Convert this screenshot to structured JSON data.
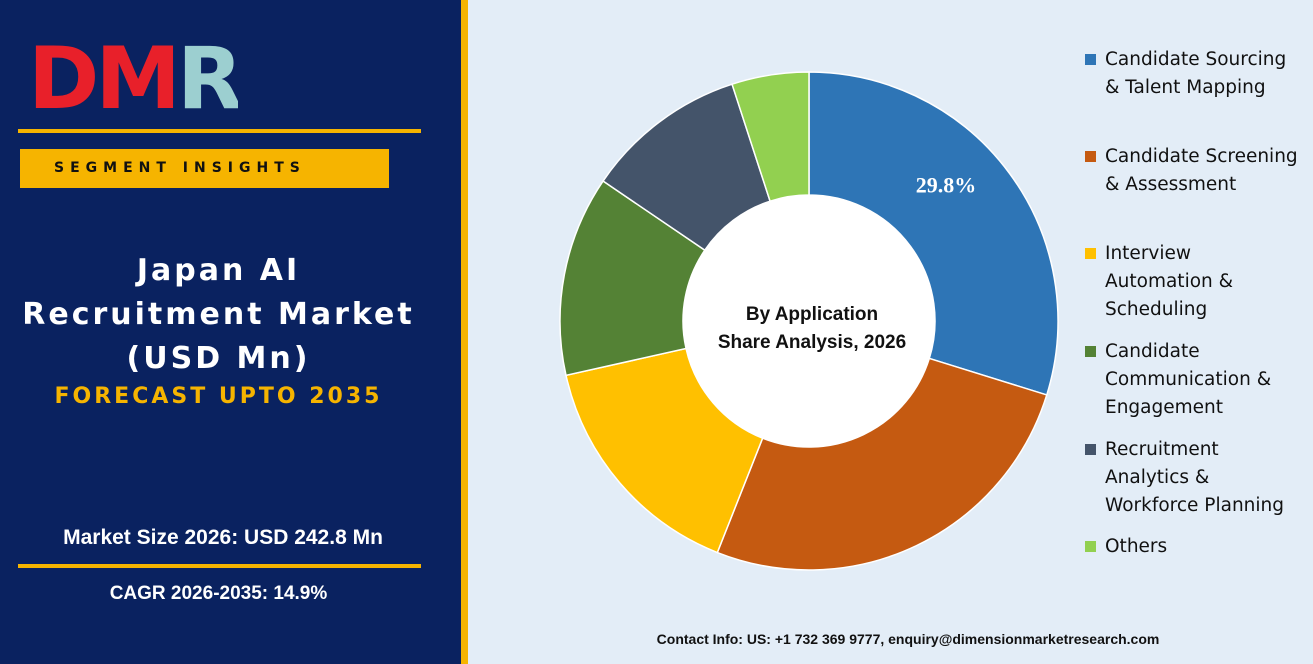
{
  "brand": {
    "logo_text": "DMR",
    "logo_colors": {
      "D": "#e8202a",
      "M": "#e8202a",
      "R": "#9ccfd0"
    }
  },
  "left": {
    "segment_label": "SEGMENT INSIGHTS",
    "title_lines": [
      "Japan AI",
      "Recruitment Market",
      "(USD Mn)"
    ],
    "forecast": "FORECAST UPTO 2035",
    "market_size": "Market Size 2026: USD 242.8 Mn",
    "cagr": "CAGR 2026-2035: 14.9%"
  },
  "colors": {
    "navy": "#0a2260",
    "gold": "#f6b400",
    "right_bg": "#e3edf7"
  },
  "chart_data": {
    "type": "pie",
    "donut": true,
    "center_label": [
      "By Application",
      "Share Analysis, 2026"
    ],
    "slices": [
      {
        "label": "Candidate Sourcing & Talent Mapping",
        "value": 29.8,
        "color": "#2e75b6",
        "data_label": "29.8%"
      },
      {
        "label": "Candidate Screening & Assessment",
        "value": 26.2,
        "color": "#c55a11",
        "data_label": ""
      },
      {
        "label": "Interview Automation & Scheduling",
        "value": 15.5,
        "color": "#ffc000",
        "data_label": ""
      },
      {
        "label": "Candidate Communication & Engagement",
        "value": 13.0,
        "color": "#548235",
        "data_label": ""
      },
      {
        "label": "Recruitment Analytics & Workforce Planning",
        "value": 10.5,
        "color": "#44546a",
        "data_label": ""
      },
      {
        "label": "Others",
        "value": 5.0,
        "color": "#92d050",
        "data_label": ""
      }
    ]
  },
  "legend": [
    {
      "text": "Candidate Sourcing\n& Talent Mapping",
      "color": "#2e75b6"
    },
    {
      "text": "Candidate Screening\n& Assessment",
      "color": "#c55a11"
    },
    {
      "text": "Interview\nAutomation &\nScheduling",
      "color": "#ffc000"
    },
    {
      "text": "Candidate\nCommunication &\nEngagement",
      "color": "#548235"
    },
    {
      "text": "Recruitment\nAnalytics &\nWorkforce Planning",
      "color": "#44546a"
    },
    {
      "text": "Others",
      "color": "#92d050"
    }
  ],
  "contact": "Contact Info: US: +1 732 369 9777, enquiry@dimensionmarketresearch.com"
}
